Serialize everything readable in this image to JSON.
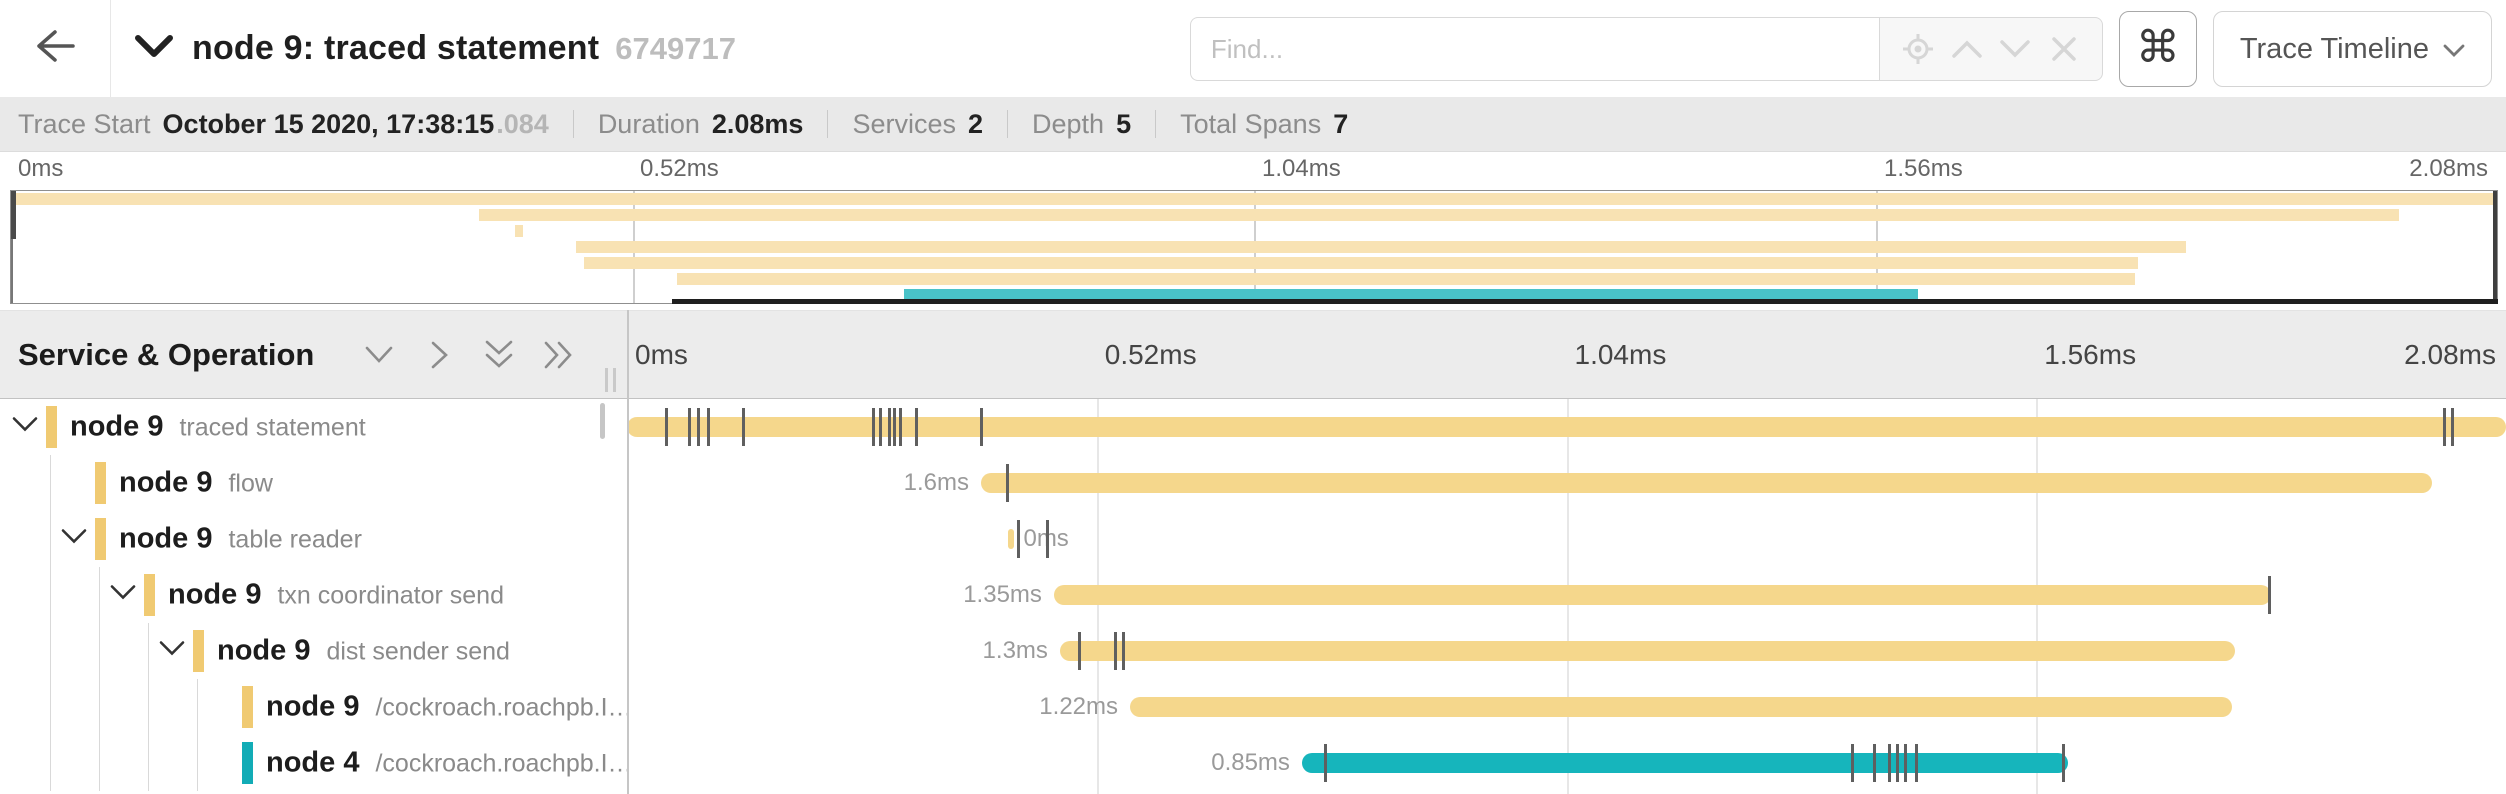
{
  "topbar": {
    "title": "node 9: traced statement",
    "trace_id": "6749717",
    "find_placeholder": "Find...",
    "shortcut_glyph": "⌘",
    "view_label": "Trace Timeline"
  },
  "summary": {
    "items": [
      {
        "label": "Trace Start",
        "value": "October 15 2020, 17:38:15",
        "suffix": ".084"
      },
      {
        "label": "Duration",
        "value": "2.08ms"
      },
      {
        "label": "Services",
        "value": "2"
      },
      {
        "label": "Depth",
        "value": "5"
      },
      {
        "label": "Total Spans",
        "value": "7"
      }
    ]
  },
  "timeline": {
    "left_header": "Service & Operation",
    "ticks": [
      "0ms",
      "0.52ms",
      "1.04ms",
      "1.56ms",
      "2.08ms"
    ],
    "viewport_shade_start_pct": 26.6
  },
  "colors": {
    "bar_tan": "#f5d78c",
    "bar_teal": "#16b5bc",
    "mini_tan": "#f8e2b3",
    "mini_teal": "#49c3c9",
    "stripe_tan": "#f0ca72",
    "stripe_teal": "#12acb6"
  },
  "spans": [
    {
      "service": "node 9",
      "operation": "traced statement",
      "depth": 0,
      "has_children": true,
      "color": "tan",
      "duration_label": "",
      "label_side": "none",
      "start_pct": 0,
      "width_pct": 100,
      "ticks": [
        2.02,
        3.25,
        3.73,
        4.26,
        6.12,
        13.04,
        13.41,
        13.89,
        14.16,
        14.48,
        15.33,
        18.79,
        96.65,
        97.07
      ]
    },
    {
      "service": "node 9",
      "operation": "flow",
      "depth": 1,
      "has_children": false,
      "color": "tan",
      "duration_label": "1.6ms",
      "label_side": "left",
      "start_pct": 18.84,
      "width_pct": 77.22,
      "ticks": [
        20.17
      ]
    },
    {
      "service": "node 9",
      "operation": "table reader",
      "depth": 1,
      "has_children": true,
      "color": "tan",
      "duration_label": "0ms",
      "label_side": "right",
      "label_left_pct": 21.1,
      "start_pct": 20.28,
      "width_pct": 0.3,
      "ticks": [
        20.76,
        22.3
      ]
    },
    {
      "service": "node 9",
      "operation": "txn coordinator send",
      "depth": 2,
      "has_children": true,
      "color": "tan",
      "duration_label": "1.35ms",
      "label_side": "left",
      "start_pct": 22.72,
      "width_pct": 64.77,
      "ticks": [
        87.33
      ]
    },
    {
      "service": "node 9",
      "operation": "dist sender send",
      "depth": 3,
      "has_children": true,
      "color": "tan",
      "duration_label": "1.3ms",
      "label_side": "left",
      "start_pct": 23.04,
      "width_pct": 62.53,
      "ticks": [
        24.0,
        25.92,
        26.34
      ]
    },
    {
      "service": "node 9",
      "operation": "/cockroach.roachpb.I…",
      "depth": 4,
      "has_children": false,
      "color": "tan",
      "duration_label": "1.22ms",
      "label_side": "left",
      "start_pct": 26.77,
      "width_pct": 58.65,
      "ticks": []
    },
    {
      "service": "node 4",
      "operation": "/cockroach.roachpb.I…",
      "depth": 4,
      "has_children": false,
      "color": "teal",
      "duration_label": "0.85ms",
      "label_side": "left",
      "start_pct": 35.92,
      "width_pct": 40.77,
      "ticks": [
        37.09,
        65.14,
        66.31,
        67.11,
        67.54,
        67.96,
        68.55,
        76.37
      ]
    }
  ]
}
